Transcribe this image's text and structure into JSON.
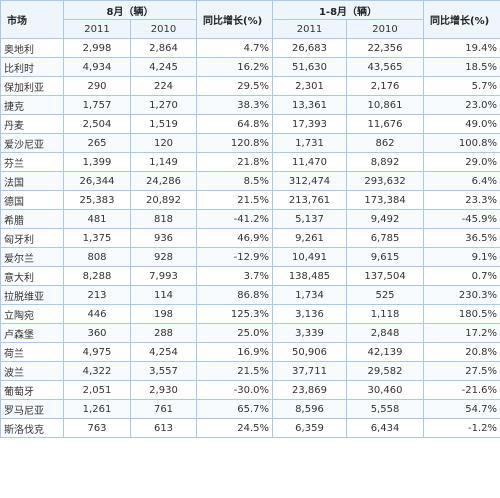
{
  "header": {
    "market": "市场",
    "aug": "8月（辆）",
    "ytd": "1-8月（辆）",
    "yoy": "同比增长(%)",
    "y2011": "2011",
    "y2010": "2010"
  },
  "rows": [
    {
      "name": "奥地利",
      "aug2011": "2,998",
      "aug2010": "2,864",
      "augYoy": "4.7%",
      "ytd2011": "26,683",
      "ytd2010": "22,356",
      "ytdYoy": "19.4%"
    },
    {
      "name": "比利时",
      "aug2011": "4,934",
      "aug2010": "4,245",
      "augYoy": "16.2%",
      "ytd2011": "51,630",
      "ytd2010": "43,565",
      "ytdYoy": "18.5%"
    },
    {
      "name": "保加利亚",
      "aug2011": "290",
      "aug2010": "224",
      "augYoy": "29.5%",
      "ytd2011": "2,301",
      "ytd2010": "2,176",
      "ytdYoy": "5.7%"
    },
    {
      "name": "捷克",
      "aug2011": "1,757",
      "aug2010": "1,270",
      "augYoy": "38.3%",
      "ytd2011": "13,361",
      "ytd2010": "10,861",
      "ytdYoy": "23.0%"
    },
    {
      "name": "丹麦",
      "aug2011": "2,504",
      "aug2010": "1,519",
      "augYoy": "64.8%",
      "ytd2011": "17,393",
      "ytd2010": "11,676",
      "ytdYoy": "49.0%"
    },
    {
      "name": "爱沙尼亚",
      "aug2011": "265",
      "aug2010": "120",
      "augYoy": "120.8%",
      "ytd2011": "1,731",
      "ytd2010": "862",
      "ytdYoy": "100.8%"
    },
    {
      "name": "芬兰",
      "aug2011": "1,399",
      "aug2010": "1,149",
      "augYoy": "21.8%",
      "ytd2011": "11,470",
      "ytd2010": "8,892",
      "ytdYoy": "29.0%"
    },
    {
      "name": "法国",
      "aug2011": "26,344",
      "aug2010": "24,286",
      "augYoy": "8.5%",
      "ytd2011": "312,474",
      "ytd2010": "293,632",
      "ytdYoy": "6.4%"
    },
    {
      "name": "德国",
      "aug2011": "25,383",
      "aug2010": "20,892",
      "augYoy": "21.5%",
      "ytd2011": "213,761",
      "ytd2010": "173,384",
      "ytdYoy": "23.3%"
    },
    {
      "name": "希腊",
      "aug2011": "481",
      "aug2010": "818",
      "augYoy": "-41.2%",
      "ytd2011": "5,137",
      "ytd2010": "9,492",
      "ytdYoy": "-45.9%"
    },
    {
      "name": "匈牙利",
      "aug2011": "1,375",
      "aug2010": "936",
      "augYoy": "46.9%",
      "ytd2011": "9,261",
      "ytd2010": "6,785",
      "ytdYoy": "36.5%"
    },
    {
      "name": "爱尔兰",
      "aug2011": "808",
      "aug2010": "928",
      "augYoy": "-12.9%",
      "ytd2011": "10,491",
      "ytd2010": "9,615",
      "ytdYoy": "9.1%"
    },
    {
      "name": "意大利",
      "aug2011": "8,288",
      "aug2010": "7,993",
      "augYoy": "3.7%",
      "ytd2011": "138,485",
      "ytd2010": "137,504",
      "ytdYoy": "0.7%"
    },
    {
      "name": "拉脱维亚",
      "aug2011": "213",
      "aug2010": "114",
      "augYoy": "86.8%",
      "ytd2011": "1,734",
      "ytd2010": "525",
      "ytdYoy": "230.3%"
    },
    {
      "name": "立陶宛",
      "aug2011": "446",
      "aug2010": "198",
      "augYoy": "125.3%",
      "ytd2011": "3,136",
      "ytd2010": "1,118",
      "ytdYoy": "180.5%"
    },
    {
      "name": "卢森堡",
      "aug2011": "360",
      "aug2010": "288",
      "augYoy": "25.0%",
      "ytd2011": "3,339",
      "ytd2010": "2,848",
      "ytdYoy": "17.2%"
    },
    {
      "name": "荷兰",
      "aug2011": "4,975",
      "aug2010": "4,254",
      "augYoy": "16.9%",
      "ytd2011": "50,906",
      "ytd2010": "42,139",
      "ytdYoy": "20.8%"
    },
    {
      "name": "波兰",
      "aug2011": "4,322",
      "aug2010": "3,557",
      "augYoy": "21.5%",
      "ytd2011": "37,711",
      "ytd2010": "29,582",
      "ytdYoy": "27.5%"
    },
    {
      "name": "葡萄牙",
      "aug2011": "2,051",
      "aug2010": "2,930",
      "augYoy": "-30.0%",
      "ytd2011": "23,869",
      "ytd2010": "30,460",
      "ytdYoy": "-21.6%"
    },
    {
      "name": "罗马尼亚",
      "aug2011": "1,261",
      "aug2010": "761",
      "augYoy": "65.7%",
      "ytd2011": "8,596",
      "ytd2010": "5,558",
      "ytdYoy": "54.7%"
    },
    {
      "name": "斯洛伐克",
      "aug2011": "763",
      "aug2010": "613",
      "augYoy": "24.5%",
      "ytd2011": "6,359",
      "ytd2010": "6,434",
      "ytdYoy": "-1.2%"
    }
  ]
}
